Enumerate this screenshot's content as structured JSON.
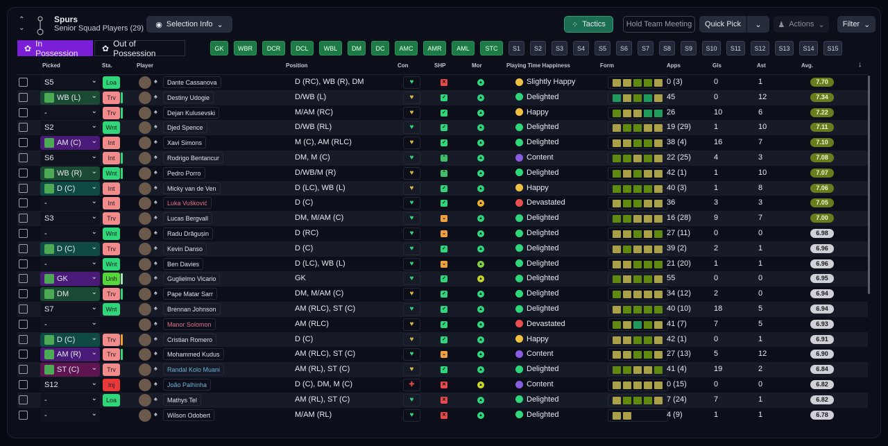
{
  "header": {
    "club": "Spurs",
    "subtitle": "Senior Squad Players (29)",
    "selection_info": "Selection Info",
    "tactics": "Tactics",
    "hold_meeting": "Hold Team Meeting",
    "quick_pick": "Quick Pick",
    "actions": "Actions",
    "filter": "Filter"
  },
  "tabs": [
    "In Possession",
    "Out of Possession"
  ],
  "positions": [
    "GK",
    "WBR",
    "DCR",
    "DCL",
    "WBL",
    "DM",
    "DC",
    "AMC",
    "AMR",
    "AML",
    "STC"
  ],
  "subs": [
    "S1",
    "S2",
    "S3",
    "S4",
    "S5",
    "S6",
    "S7",
    "S8",
    "S9",
    "S10",
    "S11",
    "S12",
    "S13",
    "S14",
    "S15"
  ],
  "columns": {
    "picked": "Picked",
    "sta": "Sta.",
    "player": "Player",
    "position": "Position",
    "con": "Con",
    "shp": "SHP",
    "mor": "Mor",
    "pth": "Playing Time Happiness",
    "form": "Form",
    "apps": "Apps",
    "gls": "Gls",
    "ast": "Ast",
    "avg": "Avg."
  },
  "colors": {
    "accent": "#7a1fd6",
    "green": "#1d7a45",
    "formY": "#a9a048",
    "formG": "#5f8a0f",
    "formT": "#1f9a5a"
  },
  "rows": [
    {
      "picked": "S5",
      "ptype": "none",
      "sta": "Loa",
      "bar": "",
      "name": "Dante Cassanova",
      "nc": "",
      "position": "D (RC), WB (R), DM",
      "con": "g",
      "shp": "x",
      "mor": "g",
      "pth": "Slightly Happy",
      "face": "y",
      "form": "yyggy",
      "apps": "0 (3)",
      "gls": "0",
      "ast": "1",
      "avg": "7.70"
    },
    {
      "picked": "WB (L)",
      "ptype": "green",
      "sta": "Trv",
      "bar": "g",
      "name": "Destiny Udogie",
      "nc": "",
      "position": "D/WB (L)",
      "con": "y",
      "shp": "c",
      "mor": "g",
      "pth": "Delighted",
      "face": "g",
      "form": "tygty",
      "apps": "45",
      "gls": "0",
      "ast": "12",
      "avg": "7.34"
    },
    {
      "picked": "-",
      "ptype": "none",
      "sta": "Trv",
      "bar": "g",
      "name": "Dejan Kulusevski",
      "nc": "",
      "position": "M/AM (RC)",
      "con": "y",
      "shp": "c",
      "mor": "g",
      "pth": "Happy",
      "face": "y",
      "form": "gyytt",
      "apps": "26",
      "gls": "10",
      "ast": "6",
      "avg": "7.22"
    },
    {
      "picked": "S2",
      "ptype": "none",
      "sta": "Wnt",
      "bar": "",
      "name": "Djed Spence",
      "nc": "",
      "position": "D/WB (RL)",
      "con": "g",
      "shp": "c",
      "mor": "g",
      "pth": "Delighted",
      "face": "g",
      "form": "yggyy",
      "apps": "19 (29)",
      "gls": "1",
      "ast": "10",
      "avg": "7.11"
    },
    {
      "picked": "AM (C)",
      "ptype": "purple",
      "sta": "Int",
      "bar": "",
      "name": "Xavi Simons",
      "nc": "",
      "position": "M (C), AM (RLC)",
      "con": "y",
      "shp": "c",
      "mor": "g",
      "pth": "Delighted",
      "face": "g",
      "form": "yyggy",
      "apps": "38 (4)",
      "gls": "16",
      "ast": "7",
      "avg": "7.10"
    },
    {
      "picked": "S6",
      "ptype": "none",
      "sta": "Int",
      "bar": "g",
      "name": "Rodrigo Bentancur",
      "nc": "",
      "position": "DM, M (C)",
      "con": "g",
      "shp": "u",
      "mor": "g",
      "pth": "Content",
      "face": "p",
      "form": "ggygy",
      "apps": "22 (25)",
      "gls": "4",
      "ast": "3",
      "avg": "7.08"
    },
    {
      "picked": "WB (R)",
      "ptype": "green",
      "sta": "Wnt",
      "bar": "g",
      "name": "Pedro Porro",
      "nc": "",
      "position": "D/WB/M (R)",
      "con": "y",
      "shp": "u",
      "mor": "g",
      "pth": "Delighted",
      "face": "g",
      "form": "gygyy",
      "apps": "42 (1)",
      "gls": "1",
      "ast": "10",
      "avg": "7.07"
    },
    {
      "picked": "D (C)",
      "ptype": "teal",
      "sta": "Int",
      "bar": "",
      "name": "Micky van de Ven",
      "nc": "",
      "position": "D (LC), WB (L)",
      "con": "y",
      "shp": "c",
      "mor": "g",
      "pth": "Happy",
      "face": "y",
      "form": "ggggy",
      "apps": "40 (3)",
      "gls": "1",
      "ast": "8",
      "avg": "7.06"
    },
    {
      "picked": "-",
      "ptype": "none",
      "sta": "Int",
      "bar": "",
      "name": "Luka Vušković",
      "nc": "red",
      "position": "D (C)",
      "con": "g",
      "shp": "c",
      "mor": "o",
      "pth": "Devastated",
      "face": "r",
      "form": "yggyy",
      "apps": "36",
      "gls": "3",
      "ast": "3",
      "avg": "7.05"
    },
    {
      "picked": "S3",
      "ptype": "none",
      "sta": "Trv",
      "bar": "",
      "name": "Lucas Bergvall",
      "nc": "",
      "position": "DM, M/AM (C)",
      "con": "g",
      "shp": "o",
      "mor": "g",
      "pth": "Delighted",
      "face": "g",
      "form": "ggyyy",
      "apps": "16 (28)",
      "gls": "9",
      "ast": "7",
      "avg": "7.00"
    },
    {
      "picked": "-",
      "ptype": "none",
      "sta": "Wnt",
      "bar": "",
      "name": "Radu Drăgușin",
      "nc": "",
      "position": "D (RC)",
      "con": "g",
      "shp": "o",
      "mor": "g",
      "pth": "Delighted",
      "face": "g",
      "form": "yygyg",
      "apps": "27 (11)",
      "gls": "0",
      "ast": "0",
      "avg": "6.98"
    },
    {
      "picked": "D (C)",
      "ptype": "teal",
      "sta": "Trv",
      "bar": "",
      "name": "Kevin Danso",
      "nc": "",
      "position": "D (C)",
      "con": "g",
      "shp": "c",
      "mor": "g",
      "pth": "Delighted",
      "face": "g",
      "form": "ygyyy",
      "apps": "39 (2)",
      "gls": "2",
      "ast": "1",
      "avg": "6.96"
    },
    {
      "picked": "-",
      "ptype": "none",
      "sta": "Wnt",
      "bar": "",
      "name": "Ben Davies",
      "nc": "",
      "position": "D (LC), WB (L)",
      "con": "g",
      "shp": "o",
      "mor": "l",
      "pth": "Delighted",
      "face": "g",
      "form": "yyggg",
      "apps": "21 (20)",
      "gls": "1",
      "ast": "1",
      "avg": "6.96"
    },
    {
      "picked": "GK",
      "ptype": "purple",
      "sta": "Unh",
      "bar": "l",
      "name": "Guglielmo Vicario",
      "nc": "",
      "position": "GK",
      "con": "g",
      "shp": "c",
      "mor": "y",
      "pth": "Delighted",
      "face": "g",
      "form": "gyggy",
      "apps": "55",
      "gls": "0",
      "ast": "0",
      "avg": "6.95"
    },
    {
      "picked": "DM",
      "ptype": "green",
      "sta": "Trv",
      "bar": "g",
      "name": "Pape Matar Sarr",
      "nc": "",
      "position": "DM, M/AM (C)",
      "con": "y",
      "shp": "c",
      "mor": "g",
      "pth": "Delighted",
      "face": "g",
      "form": "gyyyy",
      "apps": "34 (12)",
      "gls": "2",
      "ast": "0",
      "avg": "6.94"
    },
    {
      "picked": "S7",
      "ptype": "none",
      "sta": "Wnt",
      "bar": "",
      "name": "Brennan Johnson",
      "nc": "",
      "position": "AM (RLC), ST (C)",
      "con": "g",
      "shp": "c",
      "mor": "g",
      "pth": "Delighted",
      "face": "g",
      "form": "ygggg",
      "apps": "40 (10)",
      "gls": "18",
      "ast": "5",
      "avg": "6.94"
    },
    {
      "picked": "-",
      "ptype": "none",
      "sta": "",
      "bar": "",
      "name": "Manor Solomon",
      "nc": "red",
      "position": "AM (RLC)",
      "con": "y",
      "shp": "c",
      "mor": "g",
      "pth": "Devastated",
      "face": "r",
      "form": "gytgy",
      "apps": "41 (7)",
      "gls": "7",
      "ast": "5",
      "avg": "6.93"
    },
    {
      "picked": "D (C)",
      "ptype": "teal",
      "sta": "Trv",
      "bar": "o",
      "name": "Cristian Romero",
      "nc": "",
      "position": "D (C)",
      "con": "y",
      "shp": "c",
      "mor": "g",
      "pth": "Happy",
      "face": "y",
      "form": "yyggy",
      "apps": "42 (1)",
      "gls": "0",
      "ast": "1",
      "avg": "6.91"
    },
    {
      "picked": "AM (R)",
      "ptype": "purple",
      "sta": "Trv",
      "bar": "g",
      "name": "Mohammed Kudus",
      "nc": "",
      "position": "AM (RLC), ST (C)",
      "con": "g",
      "shp": "o",
      "mor": "g",
      "pth": "Content",
      "face": "p",
      "form": "yyggy",
      "apps": "27 (13)",
      "gls": "5",
      "ast": "12",
      "avg": "6.90"
    },
    {
      "picked": "ST (C)",
      "ptype": "magenta",
      "sta": "Trv",
      "bar": "",
      "name": "Randal Kolo Muani",
      "nc": "blue",
      "position": "AM (RL), ST (C)",
      "con": "y",
      "shp": "c",
      "mor": "g",
      "pth": "Delighted",
      "face": "g",
      "form": "ggyyg",
      "apps": "41 (4)",
      "gls": "19",
      "ast": "2",
      "avg": "6.84"
    },
    {
      "picked": "S12",
      "ptype": "none",
      "sta": "Inj",
      "bar": "",
      "name": "João Palhinha",
      "nc": "blue",
      "position": "D (C), DM, M (C)",
      "con": "r",
      "shp": "x",
      "mor": "y",
      "pth": "Content",
      "face": "p",
      "form": "yyyyy",
      "apps": "0 (15)",
      "gls": "0",
      "ast": "0",
      "avg": "6.82"
    },
    {
      "picked": "-",
      "ptype": "none",
      "sta": "Loa",
      "bar": "",
      "name": "Mathys Tel",
      "nc": "",
      "position": "AM (RL), ST (C)",
      "con": "g",
      "shp": "x",
      "mor": "g",
      "pth": "Delighted",
      "face": "g",
      "form": "ygggy",
      "apps": "7 (24)",
      "gls": "7",
      "ast": "1",
      "avg": "6.82"
    },
    {
      "picked": "-",
      "ptype": "none",
      "sta": "",
      "bar": "",
      "name": "Wilson Odobert",
      "nc": "",
      "position": "M/AM (RL)",
      "con": "g",
      "shp": "x",
      "mor": "g",
      "pth": "Delighted",
      "face": "g",
      "form": "yy",
      "apps": "4 (9)",
      "gls": "1",
      "ast": "1",
      "avg": "6.78"
    }
  ]
}
